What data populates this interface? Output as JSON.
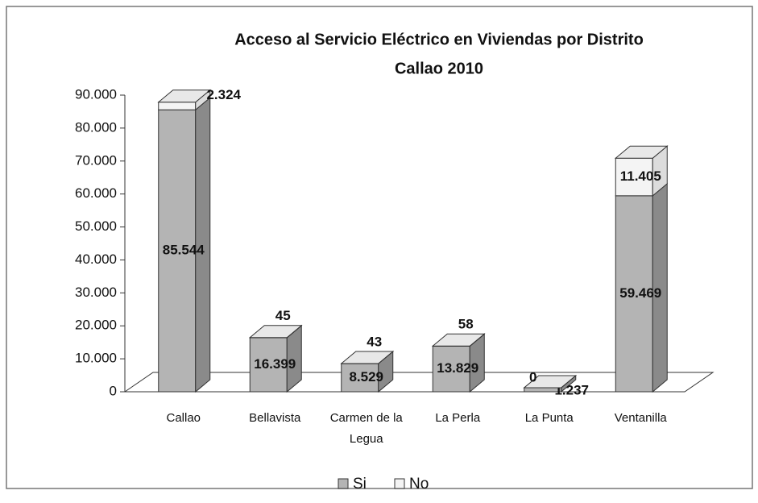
{
  "chart_data": {
    "type": "bar3d_stacked",
    "title": "Acceso al Servicio Eléctrico en Viviendas por Distrito",
    "subtitle": "Callao 2010",
    "categories": [
      "Callao",
      "Bellavista",
      "Carmen de la Legua",
      "La Perla",
      "La Punta",
      "Ventanilla"
    ],
    "series": [
      {
        "name": "Si",
        "color": "#b4b4b4",
        "values": [
          85544,
          16399,
          8529,
          13829,
          1237,
          59469
        ],
        "value_labels": [
          "85.544",
          "16.399",
          "8.529",
          "13.829",
          "1.237",
          "59.469"
        ]
      },
      {
        "name": "No",
        "color": "#f4f4f4",
        "values": [
          2324,
          45,
          43,
          58,
          0,
          11405
        ],
        "value_labels": [
          "2.324",
          "45",
          "43",
          "58",
          "0",
          "11.405"
        ]
      }
    ],
    "ylim": [
      0,
      90000
    ],
    "yticks": [
      0,
      {
        "value": 10000,
        "label": "10.000"
      },
      {
        "value": 20000,
        "label": "20.000"
      },
      {
        "value": 30000,
        "label": "30.000"
      },
      {
        "value": 40000,
        "label": "40.000"
      },
      {
        "value": 50000,
        "label": "50.000"
      },
      {
        "value": 60000,
        "label": "60.000"
      },
      {
        "value": 70000,
        "label": "70.000"
      },
      {
        "value": 80000,
        "label": "80.000"
      },
      {
        "value": 90000,
        "label": "90.000"
      }
    ],
    "legend": "bottom"
  }
}
